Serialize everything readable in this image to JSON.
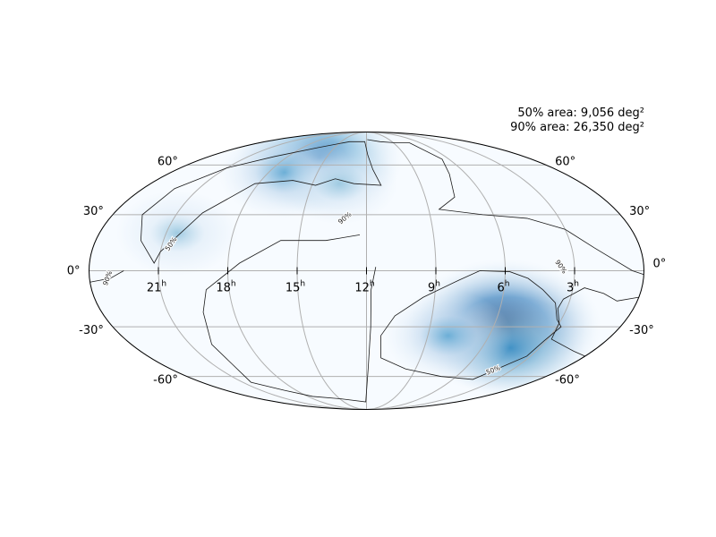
{
  "annotations": {
    "area_50": "50% area: 9,056 deg²",
    "area_90": "90% area: 26,350 deg²"
  },
  "chart_data": {
    "type": "heatmap",
    "projection": "mollweide",
    "title": "",
    "colormap": "Blues",
    "grid": true,
    "ra_ticks": [
      {
        "ra": 21,
        "label": "21",
        "sup": "h"
      },
      {
        "ra": 18,
        "label": "18",
        "sup": "h"
      },
      {
        "ra": 15,
        "label": "15",
        "sup": "h"
      },
      {
        "ra": 12,
        "label": "12",
        "sup": "h"
      },
      {
        "ra": 9,
        "label": "9",
        "sup": "h"
      },
      {
        "ra": 6,
        "label": "6",
        "sup": "h"
      },
      {
        "ra": 3,
        "label": "3",
        "sup": "h"
      }
    ],
    "dec_ticks": [
      {
        "dec": 60,
        "label": "60°"
      },
      {
        "dec": 30,
        "label": "30°"
      },
      {
        "dec": 0,
        "label": "0°"
      },
      {
        "dec": -30,
        "label": "-30°"
      },
      {
        "dec": -60,
        "label": "-60°"
      }
    ],
    "contour_labels": [
      "50%",
      "90%"
    ],
    "probability_peaks": [
      {
        "ra": 5.5,
        "dec": -30,
        "value": 1.0
      },
      {
        "ra": 4.5,
        "dec": -42,
        "value": 0.55
      },
      {
        "ra": 8.0,
        "dec": -35,
        "value": 0.4
      },
      {
        "ra": 15.5,
        "dec": 65,
        "value": 0.75
      },
      {
        "ra": 17.0,
        "dec": 55,
        "value": 0.45
      },
      {
        "ra": 20.5,
        "dec": 20,
        "value": 0.35
      },
      {
        "ra": 13.5,
        "dec": 48,
        "value": 0.3
      }
    ],
    "contour_50": [
      [
        {
          "ra": 5.8,
          "dec": -0.5
        },
        {
          "ra": 7.1,
          "dec": 0
        },
        {
          "ra": 8.0,
          "dec": -5
        },
        {
          "ra": 9.5,
          "dec": -14
        },
        {
          "ra": 10.7,
          "dec": -24
        },
        {
          "ra": 11.3,
          "dec": -35
        },
        {
          "ra": 11.2,
          "dec": -48
        },
        {
          "ra": 9.6,
          "dec": -55
        },
        {
          "ra": 7.0,
          "dec": -60
        },
        {
          "ra": 4.6,
          "dec": -62
        },
        {
          "ra": 3.2,
          "dec": -47
        },
        {
          "ra": 3.1,
          "dec": -38
        },
        {
          "ra": 2.8,
          "dec": -30
        },
        {
          "ra": 3.2,
          "dec": -26
        },
        {
          "ra": 3.6,
          "dec": -17
        },
        {
          "ra": 4.3,
          "dec": -10
        },
        {
          "ra": 5.0,
          "dec": -4
        }
      ],
      [
        {
          "ra": 12.2,
          "dec": 78
        },
        {
          "ra": 11.9,
          "dec": 67
        },
        {
          "ra": 11.6,
          "dec": 57
        },
        {
          "ra": 11.2,
          "dec": 47
        },
        {
          "ra": 12.7,
          "dec": 48
        },
        {
          "ra": 13.8,
          "dec": 51
        },
        {
          "ra": 14.8,
          "dec": 47
        },
        {
          "ra": 16.2,
          "dec": 50
        },
        {
          "ra": 18.2,
          "dec": 48
        },
        {
          "ra": 19.8,
          "dec": 31
        },
        {
          "ra": 21.0,
          "dec": 10
        },
        {
          "ra": 21.2,
          "dec": 4
        },
        {
          "ra": 22.0,
          "dec": 16
        },
        {
          "ra": 22.6,
          "dec": 30
        },
        {
          "ra": 22.3,
          "dec": 45
        },
        {
          "ra": 21.0,
          "dec": 58
        },
        {
          "ra": 19.0,
          "dec": 66
        },
        {
          "ra": 16.5,
          "dec": 73
        },
        {
          "ra": 14.0,
          "dec": 78
        }
      ]
    ],
    "contour_90": [
      [
        {
          "ra": 11.9,
          "dec": 80
        },
        {
          "ra": 10.4,
          "dec": 78
        },
        {
          "ra": 8.8,
          "dec": 77
        },
        {
          "ra": 7.2,
          "dec": 77
        },
        {
          "ra": 6.5,
          "dec": 64
        },
        {
          "ra": 7.0,
          "dec": 54
        },
        {
          "ra": 7.5,
          "dec": 40
        },
        {
          "ra": 8.5,
          "dec": 33
        },
        {
          "ra": 6.5,
          "dec": 30
        },
        {
          "ra": 4.5,
          "dec": 28
        },
        {
          "ra": 3.0,
          "dec": 22
        },
        {
          "ra": 2.0,
          "dec": 12
        },
        {
          "ra": 0.5,
          "dec": 0
        },
        {
          "ra": 0.0,
          "dec": -2
        }
      ],
      [
        {
          "ra": 24.0,
          "dec": -6
        },
        {
          "ra": 23.1,
          "dec": -4
        },
        {
          "ra": 22.5,
          "dec": 0
        }
      ],
      [
        {
          "ra": 0.0,
          "dec": -14
        },
        {
          "ra": 0.9,
          "dec": -16
        },
        {
          "ra": 1.6,
          "dec": -12
        },
        {
          "ra": 2.5,
          "dec": -9
        },
        {
          "ra": 3.3,
          "dec": -15
        },
        {
          "ra": 3.4,
          "dec": -20
        },
        {
          "ra": 3.0,
          "dec": -28
        },
        {
          "ra": 2.8,
          "dec": -37
        },
        {
          "ra": 1.0,
          "dec": -44
        },
        {
          "ra": 0.0,
          "dec": -47
        }
      ],
      [
        {
          "ra": 11.6,
          "dec": 2
        },
        {
          "ra": 11.8,
          "dec": -10
        },
        {
          "ra": 11.8,
          "dec": -30
        },
        {
          "ra": 11.9,
          "dec": -55
        },
        {
          "ra": 12.1,
          "dec": -80
        },
        {
          "ra": 15.0,
          "dec": -77
        },
        {
          "ra": 17.5,
          "dec": -75
        },
        {
          "ra": 19.0,
          "dec": -70
        },
        {
          "ra": 20.4,
          "dec": -64
        },
        {
          "ra": 19.9,
          "dec": -40
        },
        {
          "ra": 19.4,
          "dec": -22
        },
        {
          "ra": 19.0,
          "dec": -10
        },
        {
          "ra": 17.5,
          "dec": 4
        },
        {
          "ra": 15.8,
          "dec": 16
        },
        {
          "ra": 14.7,
          "dec": 16
        },
        {
          "ra": 13.8,
          "dec": 16
        },
        {
          "ra": 12.3,
          "dec": 19
        }
      ]
    ]
  }
}
